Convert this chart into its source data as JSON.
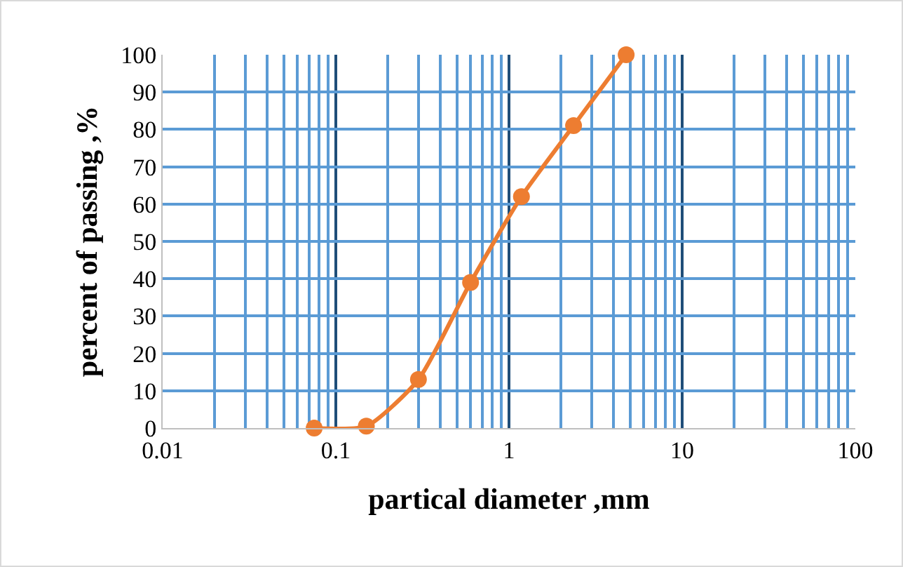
{
  "chart_data": {
    "type": "line",
    "xlabel": "partical diameter ,mm",
    "ylabel": "percent of passing ,%",
    "x": [
      0.075,
      0.15,
      0.3,
      0.6,
      1.18,
      2.36,
      4.75
    ],
    "series": [
      {
        "color": "#ed7d31",
        "values": [
          0,
          0.5,
          13,
          39,
          62,
          81,
          100
        ]
      }
    ],
    "xlim": [
      0.01,
      100
    ],
    "xticks": [
      0.01,
      0.1,
      1,
      10,
      100
    ],
    "ylim": [
      0,
      100
    ],
    "yticks": [
      0,
      10,
      20,
      30,
      40,
      50,
      60,
      70,
      80,
      90,
      100
    ],
    "log": "x",
    "grid": true,
    "marker": "circle",
    "line_style": "solid"
  }
}
